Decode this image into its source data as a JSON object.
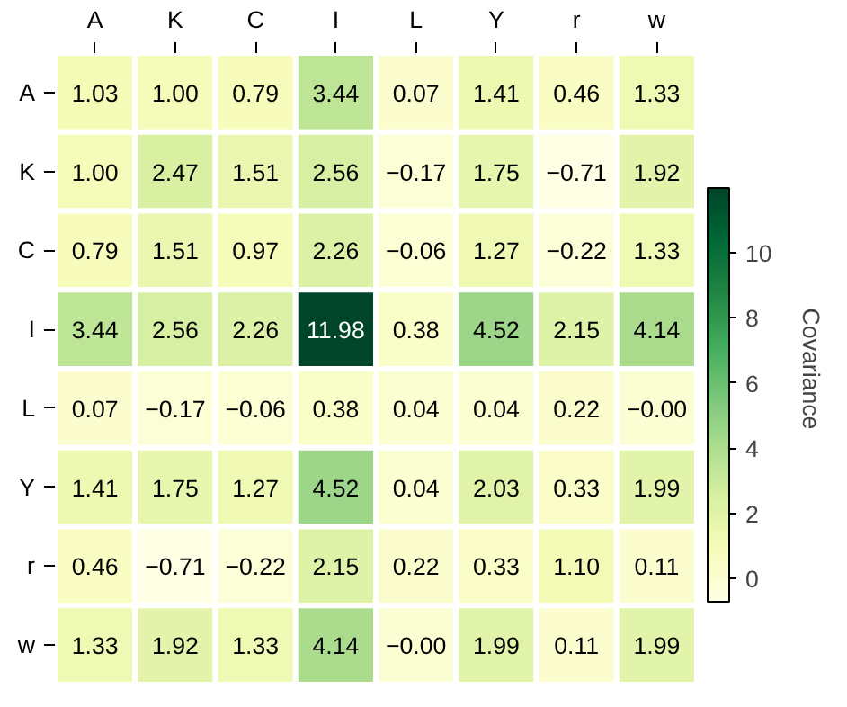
{
  "chart_data": {
    "type": "heatmap",
    "categories": [
      "A",
      "K",
      "C",
      "I",
      "L",
      "Y",
      "r",
      "w"
    ],
    "y_categories": [
      "A",
      "K",
      "C",
      "I",
      "L",
      "Y",
      "r",
      "w"
    ],
    "cells": [
      [
        1.03,
        1.0,
        0.79,
        3.44,
        0.07,
        1.41,
        0.46,
        1.33
      ],
      [
        1.0,
        2.47,
        1.51,
        2.56,
        -0.17,
        1.75,
        -0.71,
        1.92
      ],
      [
        0.79,
        1.51,
        0.97,
        2.26,
        -0.06,
        1.27,
        -0.22,
        1.33
      ],
      [
        3.44,
        2.56,
        2.26,
        11.98,
        0.38,
        4.52,
        2.15,
        4.14
      ],
      [
        0.07,
        -0.17,
        -0.06,
        0.38,
        0.04,
        0.04,
        0.22,
        -0.0
      ],
      [
        1.41,
        1.75,
        1.27,
        4.52,
        0.04,
        2.03,
        0.33,
        1.99
      ],
      [
        0.46,
        -0.71,
        -0.22,
        2.15,
        0.22,
        0.33,
        1.1,
        0.11
      ],
      [
        1.33,
        1.92,
        1.33,
        4.14,
        -0.0,
        1.99,
        0.11,
        1.99
      ]
    ],
    "cell_labels": [
      [
        "1.03",
        "1.00",
        "0.79",
        "3.44",
        "0.07",
        "1.41",
        "0.46",
        "1.33"
      ],
      [
        "1.00",
        "2.47",
        "1.51",
        "2.56",
        "−0.17",
        "1.75",
        "−0.71",
        "1.92"
      ],
      [
        "0.79",
        "1.51",
        "0.97",
        "2.26",
        "−0.06",
        "1.27",
        "−0.22",
        "1.33"
      ],
      [
        "3.44",
        "2.56",
        "2.26",
        "11.98",
        "0.38",
        "4.52",
        "2.15",
        "4.14"
      ],
      [
        "0.07",
        "−0.17",
        "−0.06",
        "0.38",
        "0.04",
        "0.04",
        "0.22",
        "−0.00"
      ],
      [
        "1.41",
        "1.75",
        "1.27",
        "4.52",
        "0.04",
        "2.03",
        "0.33",
        "1.99"
      ],
      [
        "0.46",
        "−0.71",
        "−0.22",
        "2.15",
        "0.22",
        "0.33",
        "1.10",
        "0.11"
      ],
      [
        "1.33",
        "1.92",
        "1.33",
        "4.14",
        "−0.00",
        "1.99",
        "0.11",
        "1.99"
      ]
    ],
    "clabel": "Covariance",
    "clim": [
      -0.71,
      11.98
    ],
    "cticks": [
      0,
      2,
      4,
      6,
      8,
      10
    ]
  }
}
